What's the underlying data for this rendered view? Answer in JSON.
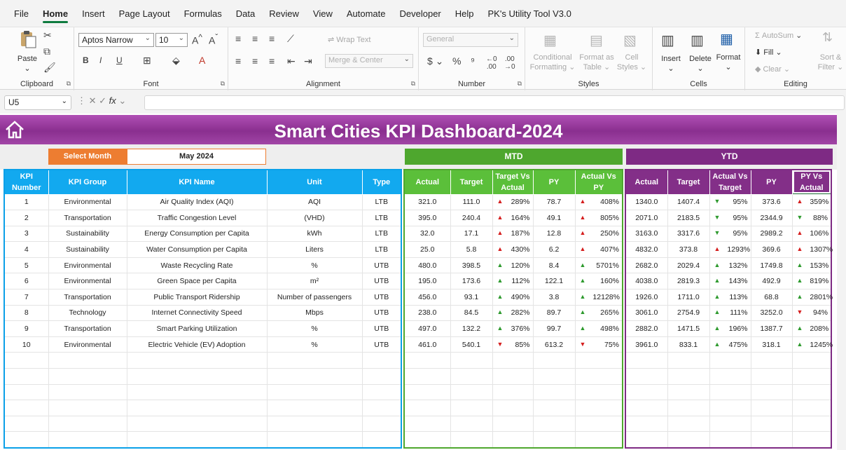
{
  "menu": [
    "File",
    "Home",
    "Insert",
    "Page Layout",
    "Formulas",
    "Data",
    "Review",
    "View",
    "Automate",
    "Developer",
    "Help",
    "PK's Utility Tool V3.0"
  ],
  "ribbon": {
    "clipboard": {
      "label": "Clipboard",
      "paste": "Paste"
    },
    "font": {
      "label": "Font",
      "name": "Aptos Narrow",
      "size": "10"
    },
    "alignment": {
      "label": "Alignment",
      "wrap": "Wrap Text",
      "merge": "Merge & Center"
    },
    "number": {
      "label": "Number",
      "format": "General"
    },
    "styles": {
      "label": "Styles",
      "conditional": [
        "Conditional",
        "Formatting"
      ],
      "format_table": [
        "Format as",
        "Table"
      ],
      "cell_styles": [
        "Cell",
        "Styles"
      ]
    },
    "cells": {
      "label": "Cells",
      "insert": "Insert",
      "delete": "Delete",
      "format": "Format"
    },
    "editing": {
      "label": "Editing",
      "autosum": "AutoSum",
      "fill": "Fill",
      "clear": "Clear",
      "sort": [
        "Sort &",
        "Filter"
      ]
    }
  },
  "formula_bar": {
    "name_box": "U5"
  },
  "dashboard": {
    "title": "Smart Cities KPI Dashboard-2024",
    "select_month_label": "Select Month",
    "selected_month": "May 2024",
    "mtd_label": "MTD",
    "ytd_label": "YTD"
  },
  "kpi_headers": [
    "KPI Number",
    "KPI Group",
    "KPI Name",
    "Unit",
    "Type"
  ],
  "mtd_headers": [
    "Actual",
    "Target",
    "Target Vs Actual",
    "PY",
    "Actual Vs PY"
  ],
  "ytd_headers": [
    "Actual",
    "Target",
    "Actual Vs Target",
    "PY",
    "PY Vs Actual"
  ],
  "rows": [
    {
      "num": "1",
      "group": "Environmental",
      "name": "Air Quality Index (AQI)",
      "unit": "AQI",
      "type": "LTB",
      "mtd": {
        "actual": "321.0",
        "target": "111.0",
        "tva": "289%",
        "tva_dir": "up",
        "tva_color": "red",
        "py": "78.7",
        "avp": "408%",
        "avp_dir": "up",
        "avp_color": "red"
      },
      "ytd": {
        "actual": "1340.0",
        "target": "1407.4",
        "avt": "95%",
        "avt_dir": "down",
        "avt_color": "green",
        "py": "373.6",
        "pva": "359%",
        "pva_dir": "up",
        "pva_color": "red"
      }
    },
    {
      "num": "2",
      "group": "Transportation",
      "name": "Traffic Congestion Level",
      "unit": "(VHD)",
      "type": "LTB",
      "mtd": {
        "actual": "395.0",
        "target": "240.4",
        "tva": "164%",
        "tva_dir": "up",
        "tva_color": "red",
        "py": "49.1",
        "avp": "805%",
        "avp_dir": "up",
        "avp_color": "red"
      },
      "ytd": {
        "actual": "2071.0",
        "target": "2183.5",
        "avt": "95%",
        "avt_dir": "down",
        "avt_color": "green",
        "py": "2344.9",
        "pva": "88%",
        "pva_dir": "down",
        "pva_color": "green"
      }
    },
    {
      "num": "3",
      "group": "Sustainability",
      "name": "Energy Consumption per Capita",
      "unit": "kWh",
      "type": "LTB",
      "mtd": {
        "actual": "32.0",
        "target": "17.1",
        "tva": "187%",
        "tva_dir": "up",
        "tva_color": "red",
        "py": "12.8",
        "avp": "250%",
        "avp_dir": "up",
        "avp_color": "red"
      },
      "ytd": {
        "actual": "3163.0",
        "target": "3317.6",
        "avt": "95%",
        "avt_dir": "down",
        "avt_color": "green",
        "py": "2989.2",
        "pva": "106%",
        "pva_dir": "up",
        "pva_color": "red"
      }
    },
    {
      "num": "4",
      "group": "Sustainability",
      "name": "Water Consumption per Capita",
      "unit": "Liters",
      "type": "LTB",
      "mtd": {
        "actual": "25.0",
        "target": "5.8",
        "tva": "430%",
        "tva_dir": "up",
        "tva_color": "red",
        "py": "6.2",
        "avp": "407%",
        "avp_dir": "up",
        "avp_color": "red"
      },
      "ytd": {
        "actual": "4832.0",
        "target": "373.8",
        "avt": "1293%",
        "avt_dir": "up",
        "avt_color": "red",
        "py": "369.6",
        "pva": "1307%",
        "pva_dir": "up",
        "pva_color": "red"
      }
    },
    {
      "num": "5",
      "group": "Environmental",
      "name": "Waste Recycling Rate",
      "unit": "%",
      "type": "UTB",
      "mtd": {
        "actual": "480.0",
        "target": "398.5",
        "tva": "120%",
        "tva_dir": "up",
        "tva_color": "green",
        "py": "8.4",
        "avp": "5701%",
        "avp_dir": "up",
        "avp_color": "green"
      },
      "ytd": {
        "actual": "2682.0",
        "target": "2029.4",
        "avt": "132%",
        "avt_dir": "up",
        "avt_color": "green",
        "py": "1749.8",
        "pva": "153%",
        "pva_dir": "up",
        "pva_color": "green"
      }
    },
    {
      "num": "6",
      "group": "Environmental",
      "name": "Green Space per Capita",
      "unit": "m²",
      "type": "UTB",
      "mtd": {
        "actual": "195.0",
        "target": "173.6",
        "tva": "112%",
        "tva_dir": "up",
        "tva_color": "green",
        "py": "122.1",
        "avp": "160%",
        "avp_dir": "up",
        "avp_color": "green"
      },
      "ytd": {
        "actual": "4038.0",
        "target": "2819.3",
        "avt": "143%",
        "avt_dir": "up",
        "avt_color": "green",
        "py": "492.9",
        "pva": "819%",
        "pva_dir": "up",
        "pva_color": "green"
      }
    },
    {
      "num": "7",
      "group": "Transportation",
      "name": "Public Transport Ridership",
      "unit": "Number of passengers",
      "type": "UTB",
      "mtd": {
        "actual": "456.0",
        "target": "93.1",
        "tva": "490%",
        "tva_dir": "up",
        "tva_color": "green",
        "py": "3.8",
        "avp": "12128%",
        "avp_dir": "up",
        "avp_color": "green"
      },
      "ytd": {
        "actual": "1926.0",
        "target": "1711.0",
        "avt": "113%",
        "avt_dir": "up",
        "avt_color": "green",
        "py": "68.8",
        "pva": "2801%",
        "pva_dir": "up",
        "pva_color": "green"
      }
    },
    {
      "num": "8",
      "group": "Technology",
      "name": "Internet Connectivity Speed",
      "unit": "Mbps",
      "type": "UTB",
      "mtd": {
        "actual": "238.0",
        "target": "84.5",
        "tva": "282%",
        "tva_dir": "up",
        "tva_color": "green",
        "py": "89.7",
        "avp": "265%",
        "avp_dir": "up",
        "avp_color": "green"
      },
      "ytd": {
        "actual": "3061.0",
        "target": "2754.9",
        "avt": "111%",
        "avt_dir": "up",
        "avt_color": "green",
        "py": "3252.0",
        "pva": "94%",
        "pva_dir": "down",
        "pva_color": "red"
      }
    },
    {
      "num": "9",
      "group": "Transportation",
      "name": "Smart Parking Utilization",
      "unit": "%",
      "type": "UTB",
      "mtd": {
        "actual": "497.0",
        "target": "132.2",
        "tva": "376%",
        "tva_dir": "up",
        "tva_color": "green",
        "py": "99.7",
        "avp": "498%",
        "avp_dir": "up",
        "avp_color": "green"
      },
      "ytd": {
        "actual": "2882.0",
        "target": "1471.5",
        "avt": "196%",
        "avt_dir": "up",
        "avt_color": "green",
        "py": "1387.7",
        "pva": "208%",
        "pva_dir": "up",
        "pva_color": "green"
      }
    },
    {
      "num": "10",
      "group": "Environmental",
      "name": "Electric Vehicle (EV) Adoption",
      "unit": "%",
      "type": "UTB",
      "mtd": {
        "actual": "461.0",
        "target": "540.1",
        "tva": "85%",
        "tva_dir": "down",
        "tva_color": "red",
        "py": "613.2",
        "avp": "75%",
        "avp_dir": "down",
        "avp_color": "red"
      },
      "ytd": {
        "actual": "3961.0",
        "target": "833.1",
        "avt": "475%",
        "avt_dir": "up",
        "avt_color": "green",
        "py": "318.1",
        "pva": "1245%",
        "pva_dir": "up",
        "pva_color": "green"
      }
    }
  ]
}
